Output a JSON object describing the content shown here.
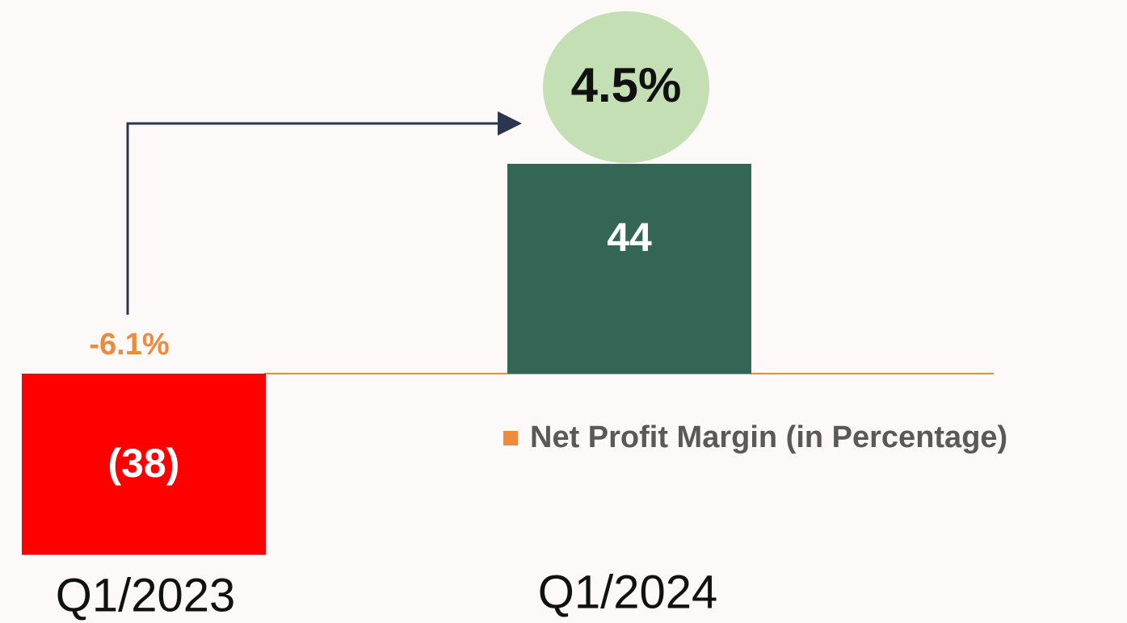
{
  "chart_data": {
    "type": "bar",
    "categories": [
      "Q1/2023",
      "Q1/2024"
    ],
    "series": [
      {
        "values": [
          -38,
          44
        ],
        "value_labels": [
          "(38)",
          "44"
        ],
        "colors": [
          "#ff0000",
          "#336655"
        ]
      },
      {
        "name": "Net Profit Margin (in Percentage)",
        "color": "#ee8a3c",
        "values": [
          -6.1,
          4.5
        ],
        "value_labels": [
          "-6.1%",
          "4.5%"
        ]
      }
    ]
  }
}
